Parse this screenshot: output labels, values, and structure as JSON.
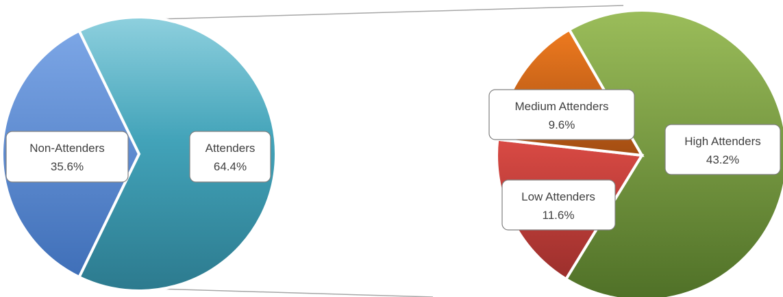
{
  "chart_data": {
    "type": "pie",
    "title": "",
    "left_pie": {
      "slices": [
        {
          "name": "Non-Attenders",
          "value": 35.6,
          "label": "35.6%",
          "color": "#4a78c2"
        },
        {
          "name": "Attenders",
          "value": 64.4,
          "label": "64.4%",
          "color": "#3a97ad"
        }
      ]
    },
    "right_pie": {
      "breakdown_of": "Attenders",
      "slices": [
        {
          "name": "High Attenders",
          "value": 43.2,
          "label": "43.2%",
          "color": "#6f9a3c"
        },
        {
          "name": "Low Attenders",
          "value": 11.6,
          "label": "11.6%",
          "color": "#c23b3a"
        },
        {
          "name": "Medium Attenders",
          "value": 9.6,
          "label": "9.6%",
          "color": "#d96a1c"
        }
      ]
    },
    "legend": "none"
  }
}
